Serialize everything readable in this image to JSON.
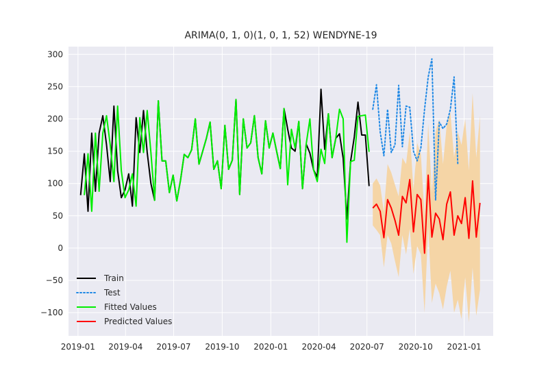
{
  "chart_data": {
    "type": "line",
    "title": "ARIMA(0, 1, 0)(1, 0, 1, 52) WENDYNE-19",
    "xlabel": "",
    "ylabel": "",
    "x_ticks": [
      "2019-01",
      "2019-04",
      "2019-07",
      "2019-10",
      "2020-01",
      "2020-04",
      "2020-07",
      "2020-10",
      "2021-01"
    ],
    "x_tick_dates": [
      "2019-01-01",
      "2019-04-01",
      "2019-07-01",
      "2019-10-01",
      "2020-01-01",
      "2020-04-01",
      "2020-07-01",
      "2020-10-01",
      "2021-01-01"
    ],
    "y_ticks": [
      -100,
      -50,
      0,
      50,
      100,
      150,
      200,
      250,
      300
    ],
    "xlim": [
      "2018-12-14",
      "2021-02-25"
    ],
    "ylim": [
      -136,
      312
    ],
    "grid": true,
    "legend_position": "lower-left",
    "colors": {
      "background": "#eaeaf2",
      "grid": "#ffffff",
      "train": "#000000",
      "test": "#1e88e5",
      "fitted": "#00ee00",
      "predicted": "#ff0000",
      "ci": "#f5d5a6"
    },
    "series": [
      {
        "name": "Train",
        "style": "solid",
        "start": "2019-01-06",
        "step_days": 7,
        "values": [
          82,
          146,
          57,
          178,
          88,
          178,
          205,
          160,
          103,
          220,
          120,
          78,
          90,
          115,
          65,
          202,
          148,
          213,
          148,
          100,
          74,
          228,
          135,
          135,
          86,
          113,
          73,
          105,
          145,
          140,
          152,
          200,
          130,
          150,
          170,
          195,
          122,
          135,
          92,
          190,
          122,
          136,
          230,
          83,
          200,
          155,
          163,
          205,
          140,
          115,
          197,
          155,
          178,
          150,
          123,
          216,
          184,
          155,
          150,
          196,
          92,
          161,
          147,
          121,
          110,
          246,
          153,
          208,
          140,
          170,
          177,
          139,
          45,
          134,
          172,
          226,
          175,
          175,
          96
        ]
      },
      {
        "name": "Test",
        "style": "dotted",
        "start": "2020-07-12",
        "step_days": 7,
        "values": [
          215,
          253,
          180,
          143,
          215,
          148,
          160,
          252,
          157,
          220,
          218,
          150,
          135,
          155,
          215,
          265,
          293,
          74,
          195,
          185,
          192,
          215,
          265,
          131
        ]
      },
      {
        "name": "Fitted Values",
        "style": "solid",
        "start": "2019-01-13",
        "step_days": 7,
        "values": [
          82,
          146,
          57,
          178,
          88,
          178,
          205,
          160,
          103,
          220,
          120,
          78,
          90,
          115,
          65,
          202,
          148,
          213,
          148,
          74,
          228,
          135,
          135,
          86,
          113,
          73,
          105,
          145,
          140,
          152,
          200,
          130,
          150,
          170,
          195,
          122,
          135,
          92,
          190,
          122,
          136,
          230,
          83,
          200,
          155,
          163,
          205,
          140,
          115,
          197,
          155,
          178,
          150,
          123,
          216,
          98,
          184,
          155,
          196,
          92,
          161,
          200,
          121,
          103,
          153,
          131,
          208,
          140,
          170,
          215,
          200,
          9,
          134,
          136,
          204,
          205,
          206,
          149
        ]
      },
      {
        "name": "Predicted Values",
        "style": "solid",
        "start": "2020-07-12",
        "step_days": 7,
        "values": [
          62,
          68,
          57,
          16,
          75,
          62,
          43,
          20,
          80,
          70,
          106,
          25,
          83,
          75,
          -8,
          113,
          17,
          54,
          45,
          13,
          68,
          87,
          20,
          50,
          38,
          78,
          15,
          104,
          17,
          70
        ]
      }
    ],
    "confidence_interval": {
      "start": "2020-07-12",
      "step_days": 7,
      "upper": [
        100,
        108,
        97,
        56,
        130,
        117,
        98,
        80,
        140,
        130,
        180,
        90,
        163,
        145,
        50,
        193,
        85,
        180,
        200,
        130,
        190,
        210,
        140,
        180,
        160,
        200,
        120,
        240,
        140,
        205
      ],
      "lower": [
        35,
        28,
        20,
        -30,
        20,
        7,
        -20,
        -45,
        20,
        -10,
        30,
        -40,
        3,
        -10,
        -100,
        33,
        -85,
        -55,
        -70,
        -95,
        -60,
        -35,
        -100,
        -80,
        -110,
        -45,
        -115,
        -30,
        -105,
        -65
      ]
    }
  }
}
